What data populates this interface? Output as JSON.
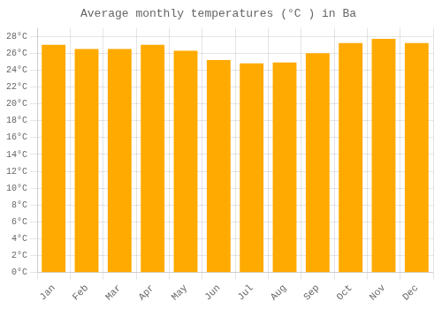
{
  "chart_data": {
    "type": "bar",
    "title": "Average monthly temperatures (°C ) in Ba",
    "categories": [
      "Jan",
      "Feb",
      "Mar",
      "Apr",
      "May",
      "Jun",
      "Jul",
      "Aug",
      "Sep",
      "Oct",
      "Nov",
      "Dec"
    ],
    "values": [
      27.0,
      26.5,
      26.5,
      27.0,
      26.3,
      25.2,
      24.8,
      24.9,
      26.0,
      27.2,
      27.7,
      27.2
    ],
    "color": "#FFAA00",
    "ylim": [
      0,
      29
    ],
    "yticks": [
      {
        "value": 0,
        "label": "0°C"
      },
      {
        "value": 2,
        "label": "2°C"
      },
      {
        "value": 4,
        "label": "4°C"
      },
      {
        "value": 6,
        "label": "6°C"
      },
      {
        "value": 8,
        "label": "8°C"
      },
      {
        "value": 10,
        "label": "10°C"
      },
      {
        "value": 12,
        "label": "12°C"
      },
      {
        "value": 14,
        "label": "14°C"
      },
      {
        "value": 16,
        "label": "16°C"
      },
      {
        "value": 18,
        "label": "18°C"
      },
      {
        "value": 20,
        "label": "20°C"
      },
      {
        "value": 22,
        "label": "22°C"
      },
      {
        "value": 24,
        "label": "24°C"
      },
      {
        "value": 26,
        "label": "26°C"
      },
      {
        "value": 28,
        "label": "28°C"
      }
    ],
    "grid": true
  }
}
